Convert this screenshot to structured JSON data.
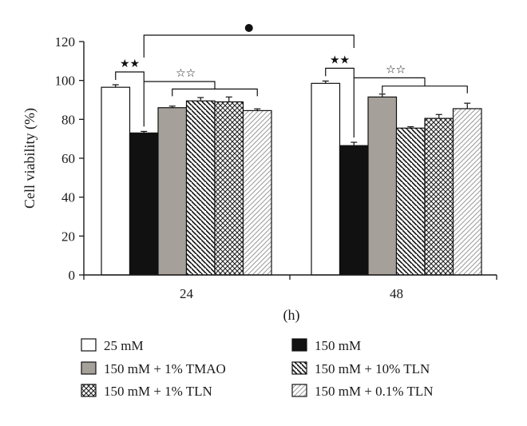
{
  "chart_data": {
    "type": "bar",
    "ylabel": "Cell viability (%)",
    "xlabel": "(h)",
    "ylim": [
      0,
      120
    ],
    "yticks": [
      "0",
      "20",
      "40",
      "60",
      "80",
      "100",
      "120"
    ],
    "categories": [
      "24",
      "48"
    ],
    "series": [
      {
        "name": "25 mM",
        "values": [
          96.5,
          98.5
        ],
        "errors": [
          1.3,
          1.2
        ],
        "pattern": "white"
      },
      {
        "name": "150 mM",
        "values": [
          73,
          66.5
        ],
        "errors": [
          0.8,
          1.7
        ],
        "pattern": "black"
      },
      {
        "name": "150 mM + 1% TMAO",
        "values": [
          86,
          91.5
        ],
        "errors": [
          0.8,
          1.5
        ],
        "pattern": "gray"
      },
      {
        "name": "150 mM + 10% TLN",
        "values": [
          89.5,
          75.5
        ],
        "errors": [
          1.7,
          0.7
        ],
        "pattern": "diag-down"
      },
      {
        "name": "150 mM + 1% TLN",
        "values": [
          89,
          80.5
        ],
        "errors": [
          2.5,
          2.0
        ],
        "pattern": "crosshatch"
      },
      {
        "name": "150 mM + 0.1% TLN",
        "values": [
          84.5,
          85.5
        ],
        "errors": [
          0.9,
          2.8
        ],
        "pattern": "diag-light"
      }
    ],
    "significance": {
      "pair_marker": "★★",
      "group_marker": "☆☆",
      "between_times_marker": "●"
    },
    "legend_placement": "bottom",
    "grid": false
  },
  "colors": {
    "axis": "#1a1a1a",
    "gray_bar": "#a6a09b",
    "black_bar": "#111111"
  }
}
